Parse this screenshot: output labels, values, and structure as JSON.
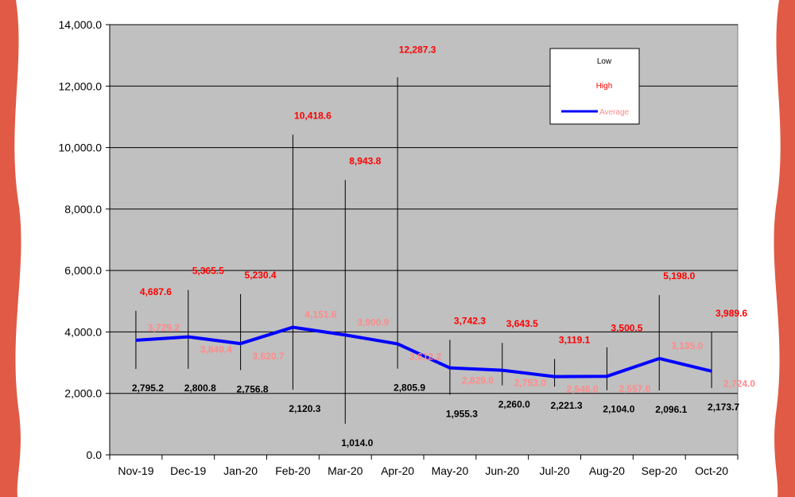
{
  "colors": {
    "border": "#e05a45",
    "plot_bg": "#c0c0c0",
    "low": "#000000",
    "high": "#ff0000",
    "average": "#0000ff",
    "average_label": "#ff8a8a"
  },
  "chart_data": {
    "type": "line",
    "categories": [
      "Nov-19",
      "Dec-19",
      "Jan-20",
      "Feb-20",
      "Mar-20",
      "Apr-20",
      "May-20",
      "Jun-20",
      "Jul-20",
      "Aug-20",
      "Sep-20",
      "Oct-20"
    ],
    "series": [
      {
        "name": "Low",
        "values": [
          2795.2,
          2800.8,
          2756.8,
          2120.3,
          1014.0,
          2805.9,
          1955.3,
          2260.0,
          2221.3,
          2104.0,
          2096.1,
          2173.7
        ],
        "labels": [
          "2,795.2",
          "2,800.8",
          "2,756.8",
          "2,120.3",
          "1,014.0",
          "2,805.9",
          "1,955.3",
          "2,260.0",
          "2,221.3",
          "2,104.0",
          "2,096.1",
          "2,173.7"
        ]
      },
      {
        "name": "High",
        "values": [
          4687.6,
          5365.5,
          5230.4,
          10418.6,
          8943.8,
          12287.3,
          3742.3,
          3643.5,
          3119.1,
          3500.5,
          5198.0,
          3989.6
        ],
        "labels": [
          "4,687.6",
          "5,365.5",
          "5,230.4",
          "10,418.6",
          "8,943.8",
          "12,287.3",
          "3,742.3",
          "3,643.5",
          "3,119.1",
          "3,500.5",
          "5,198.0",
          "3,989.6"
        ]
      },
      {
        "name": "Average",
        "values": [
          3729.2,
          3840.4,
          3620.7,
          4151.6,
          3900.9,
          3612.2,
          2829.0,
          2753.0,
          2546.0,
          2557.0,
          3135.0,
          2724.0
        ],
        "labels": [
          "3,729.2",
          "3,840.4",
          "3,620.7",
          "4,151.6",
          "3,900.9",
          "3,612.2",
          "2,829.0",
          "2,753.0",
          "2,546.0",
          "2,557.0",
          "3,135.0",
          "2,724.0"
        ]
      }
    ],
    "ylim": [
      0,
      14000
    ],
    "yticks": [
      "0.0",
      "2,000.0",
      "4,000.0",
      "6,000.0",
      "8,000.0",
      "10,000.0",
      "12,000.0",
      "14,000.0"
    ],
    "ytick_values": [
      0,
      2000,
      4000,
      6000,
      8000,
      10000,
      12000,
      14000
    ],
    "grid": true,
    "legend_position": "top-right",
    "title": "",
    "xlabel": "",
    "ylabel": ""
  }
}
